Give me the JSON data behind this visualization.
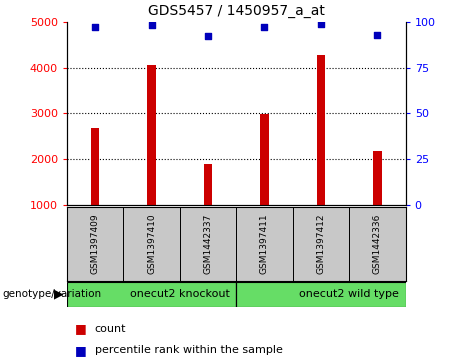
{
  "title": "GDS5457 / 1450957_a_at",
  "samples": [
    "GSM1397409",
    "GSM1397410",
    "GSM1442337",
    "GSM1397411",
    "GSM1397412",
    "GSM1442336"
  ],
  "counts": [
    2680,
    4055,
    1900,
    2980,
    4280,
    2180
  ],
  "percentiles": [
    97,
    98,
    92,
    97,
    99,
    93
  ],
  "groups": [
    {
      "label": "onecut2 knockout",
      "start": 0,
      "end": 3,
      "color": "#66DD66"
    },
    {
      "label": "onecut2 wild type",
      "start": 3,
      "end": 6,
      "color": "#66DD66"
    }
  ],
  "group_boundary": 3,
  "ylim_left": [
    1000,
    5000
  ],
  "ylim_right": [
    0,
    100
  ],
  "yticks_left": [
    1000,
    2000,
    3000,
    4000,
    5000
  ],
  "yticks_right": [
    0,
    25,
    50,
    75,
    100
  ],
  "bar_color": "#CC0000",
  "dot_color": "#0000BB",
  "bar_width": 0.15,
  "bg_color": "#C8C8C8",
  "legend_count_label": "count",
  "legend_pct_label": "percentile rank within the sample",
  "genotype_label": "genotype/variation"
}
